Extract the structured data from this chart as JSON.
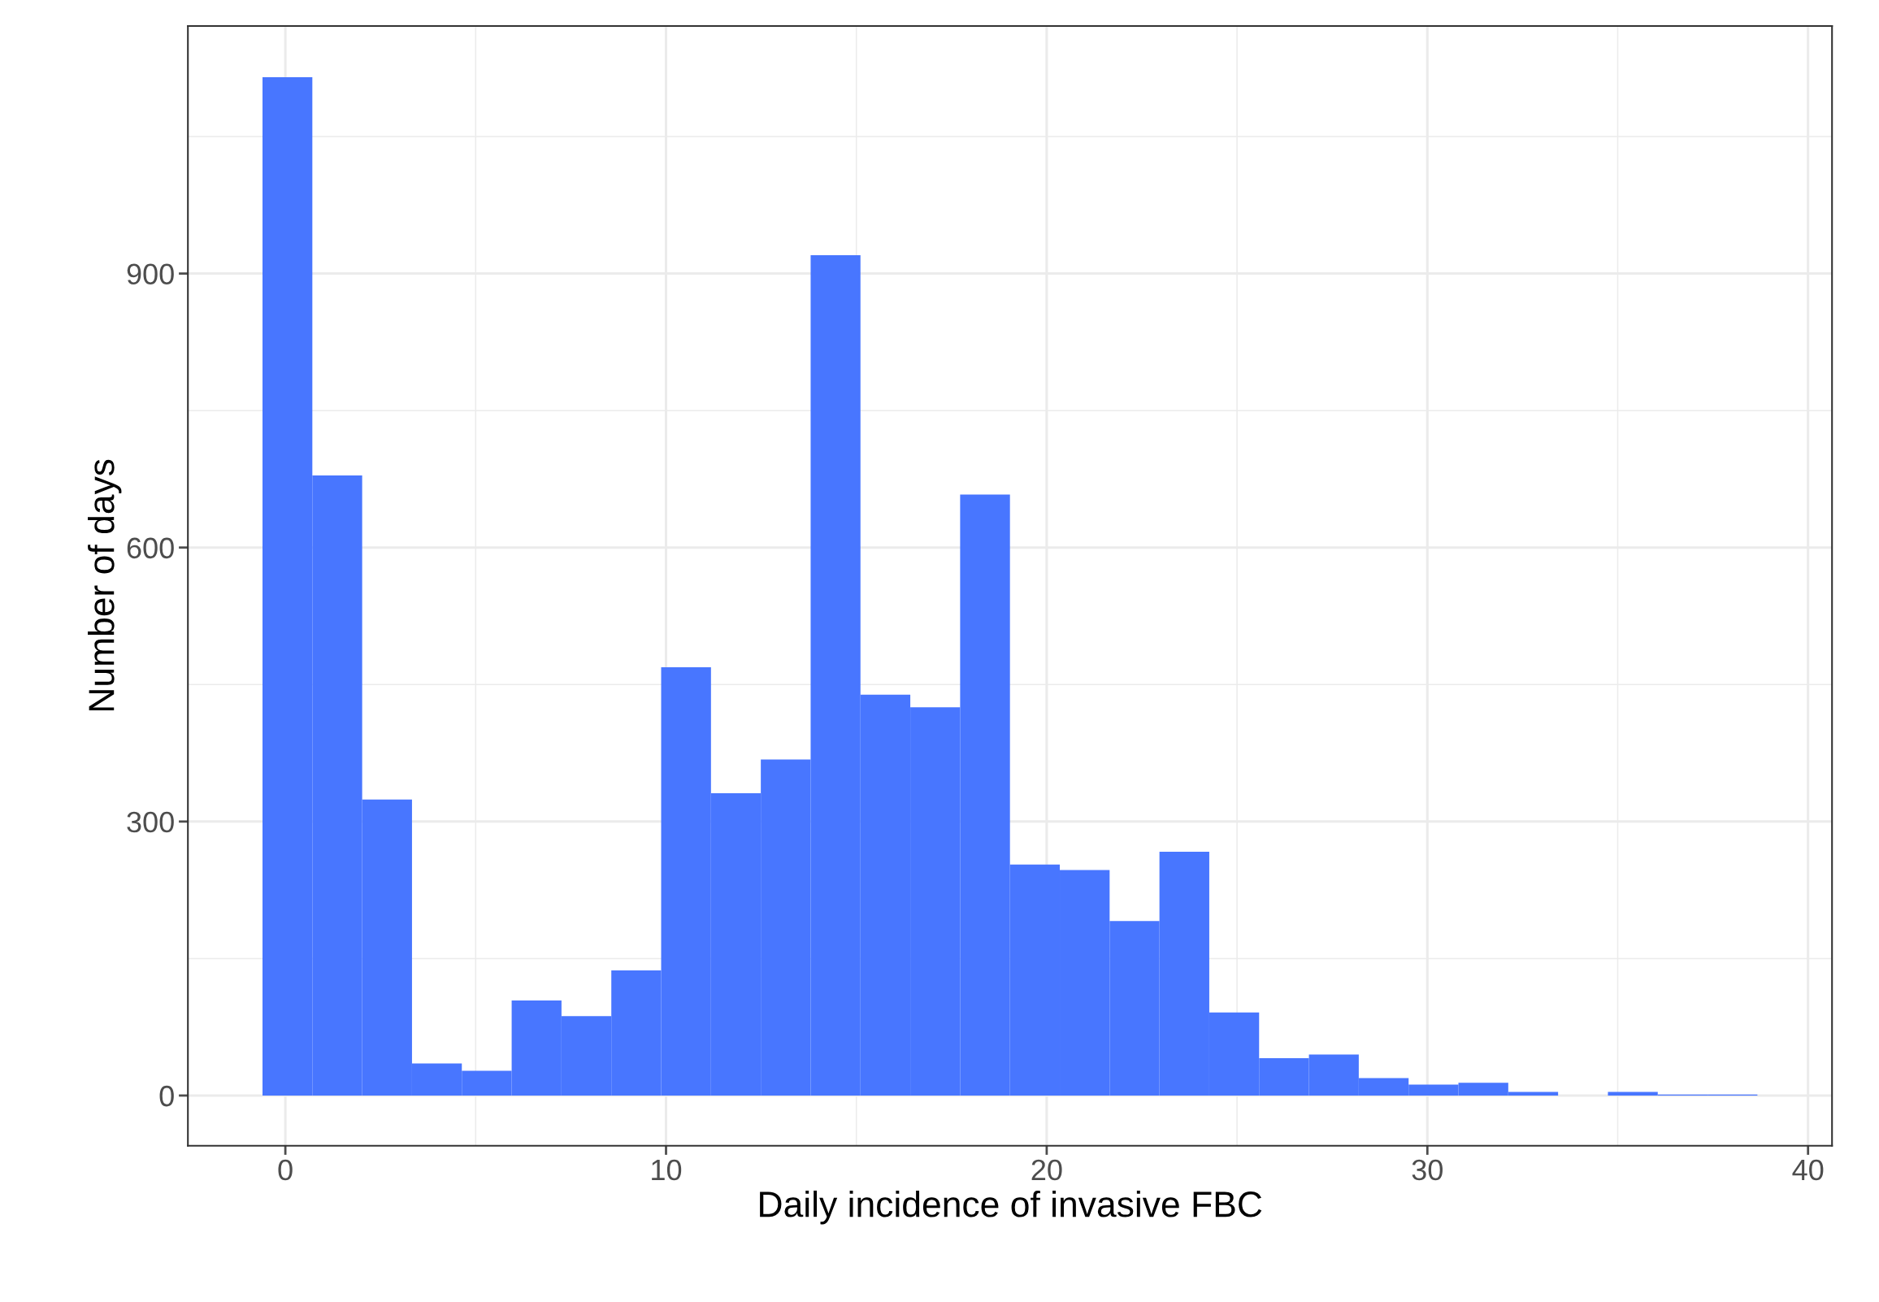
{
  "chart_data": {
    "type": "histogram",
    "xlabel": "Daily incidence of invasive FBC",
    "ylabel": "Number of days",
    "bins": [
      -0.6,
      0.709,
      2.018,
      3.327,
      4.636,
      5.945,
      7.254,
      8.563,
      9.872,
      11.181,
      12.49,
      13.799,
      15.108,
      16.417,
      17.726,
      19.035,
      20.344,
      21.653,
      22.962,
      24.271,
      25.58,
      26.889,
      28.198,
      29.507,
      30.816,
      32.125,
      33.434,
      34.743,
      36.052,
      37.361,
      38.67
    ],
    "values": [
      1115,
      679,
      324,
      35,
      27,
      104,
      87,
      137,
      469,
      331,
      368,
      920,
      439,
      425,
      658,
      253,
      247,
      191,
      267,
      91,
      41,
      45,
      19,
      12,
      14,
      4,
      0,
      4,
      1,
      1
    ],
    "color": "#4876ff",
    "xlim": [
      -2.56,
      40.63
    ],
    "ylim": [
      -55,
      1171
    ],
    "xticks": [
      0,
      10,
      20,
      30,
      40
    ],
    "yticks": [
      0,
      300,
      600,
      900
    ],
    "grid": true
  }
}
